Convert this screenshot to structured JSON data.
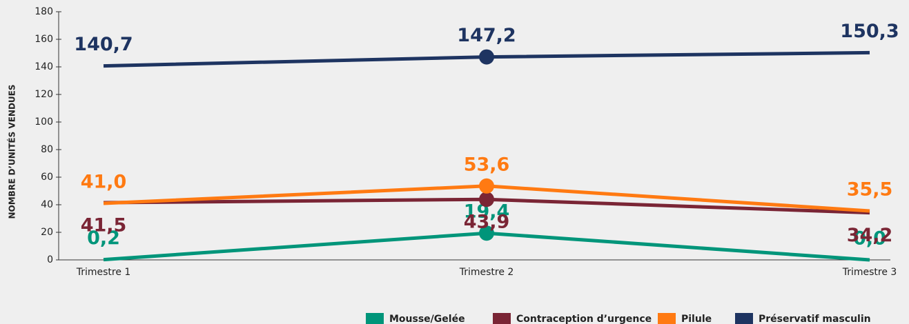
{
  "chart_data": {
    "type": "line",
    "y_label": "NOMBRE D’UNITÉS VENDUES",
    "categories": [
      "Trimestre 1",
      "Trimestre 2",
      "Trimestre 3"
    ],
    "series": [
      {
        "name": "Mousse/Gelée",
        "color": "#00957a",
        "values": [
          0.2,
          19.4,
          0.0
        ],
        "value_labels": [
          "0,2",
          "19,4",
          "0,0"
        ]
      },
      {
        "name": "Contraception d’urgence",
        "color": "#7a2535",
        "values": [
          41.5,
          43.9,
          34.2
        ],
        "value_labels": [
          "41,5",
          "43,9",
          "34,2"
        ]
      },
      {
        "name": "Pilule",
        "color": "#ff7a12",
        "values": [
          41.0,
          53.6,
          35.5
        ],
        "value_labels": [
          "41,0",
          "53,6",
          "35,5"
        ]
      },
      {
        "name": "Préservatif masculin",
        "color": "#1e3461",
        "values": [
          140.7,
          147.2,
          150.3
        ],
        "value_labels": [
          "140,7",
          "147,2",
          "150,3"
        ]
      }
    ],
    "ylim": [
      0,
      180
    ],
    "yticks": [
      0,
      20,
      40,
      60,
      80,
      100,
      120,
      140,
      160,
      180
    ]
  }
}
